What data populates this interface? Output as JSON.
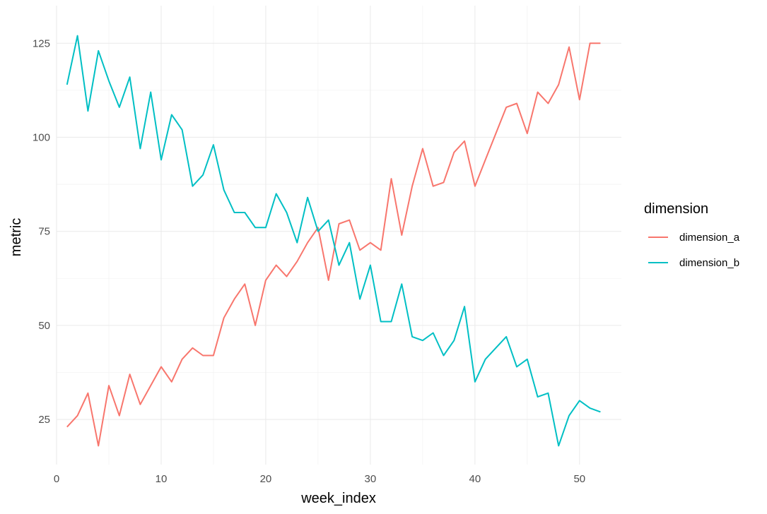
{
  "chart_data": {
    "type": "line",
    "xlabel": "week_index",
    "ylabel": "metric",
    "xlim": [
      0,
      54
    ],
    "ylim": [
      13,
      135
    ],
    "x_ticks": [
      0,
      10,
      20,
      30,
      40,
      50
    ],
    "y_ticks": [
      25,
      50,
      75,
      100,
      125
    ],
    "grid": true,
    "legend": {
      "title": "dimension",
      "position": "right"
    },
    "series": [
      {
        "name": "dimension_a",
        "color": "#F8766D",
        "x": [
          1,
          2,
          3,
          4,
          5,
          6,
          7,
          8,
          9,
          10,
          11,
          12,
          13,
          14,
          15,
          16,
          17,
          18,
          19,
          20,
          21,
          22,
          23,
          24,
          25,
          26,
          27,
          28,
          29,
          30,
          31,
          32,
          33,
          34,
          35,
          36,
          37,
          38,
          39,
          40,
          41,
          42,
          43,
          44,
          45,
          46,
          47,
          48,
          49,
          50,
          51,
          52
        ],
        "values": [
          23,
          26,
          32,
          18,
          34,
          26,
          37,
          29,
          34,
          39,
          35,
          41,
          44,
          42,
          42,
          52,
          57,
          61,
          50,
          62,
          66,
          63,
          67,
          72,
          76,
          62,
          77,
          78,
          70,
          72,
          70,
          89,
          74,
          87,
          97,
          87,
          88,
          96,
          99,
          87,
          94,
          101,
          108,
          109,
          101,
          112,
          109,
          114,
          124,
          110,
          125,
          125
        ]
      },
      {
        "name": "dimension_b",
        "color": "#00BFC4",
        "x": [
          1,
          2,
          3,
          4,
          5,
          6,
          7,
          8,
          9,
          10,
          11,
          12,
          13,
          14,
          15,
          16,
          17,
          18,
          19,
          20,
          21,
          22,
          23,
          24,
          25,
          26,
          27,
          28,
          29,
          30,
          31,
          32,
          33,
          34,
          35,
          36,
          37,
          38,
          39,
          40,
          41,
          42,
          43,
          44,
          45,
          46,
          47,
          48,
          49,
          50,
          51,
          52
        ],
        "values": [
          114,
          127,
          107,
          123,
          115,
          108,
          116,
          97,
          112,
          94,
          106,
          102,
          87,
          90,
          98,
          86,
          80,
          80,
          76,
          76,
          85,
          80,
          72,
          84,
          75,
          78,
          66,
          72,
          57,
          66,
          51,
          51,
          61,
          47,
          46,
          48,
          42,
          46,
          55,
          35,
          41,
          44,
          47,
          39,
          41,
          31,
          32,
          18,
          26,
          30,
          28,
          27
        ]
      }
    ]
  }
}
